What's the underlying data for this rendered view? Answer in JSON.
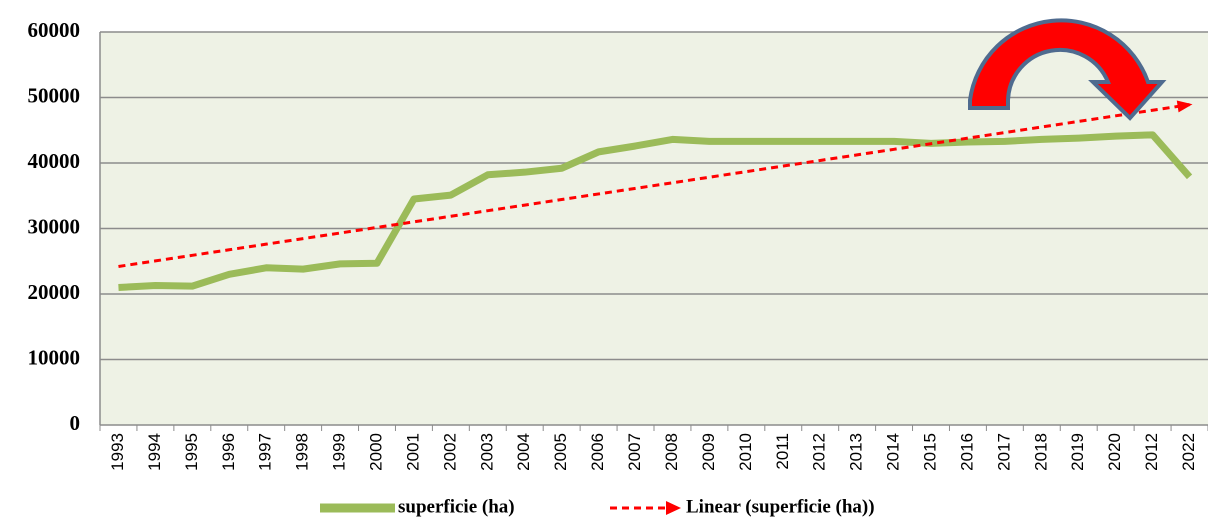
{
  "chart_data": {
    "type": "line",
    "categories": [
      "1993",
      "1994",
      "1995",
      "1996",
      "1997",
      "1998",
      "1999",
      "2000",
      "2001",
      "2002",
      "2003",
      "2004",
      "2005",
      "2006",
      "2007",
      "2008",
      "2009",
      "2010",
      "2011",
      "2012",
      "2013",
      "2014",
      "2015",
      "2016",
      "2017",
      "2018",
      "2019",
      "2020",
      "2012",
      "2022"
    ],
    "series": [
      {
        "name": "superficie (ha)",
        "color": "#9bbb59",
        "values": [
          21000,
          21300,
          21200,
          23000,
          24000,
          23800,
          24600,
          24700,
          34500,
          35100,
          38200,
          38600,
          39200,
          41700,
          42600,
          43600,
          43300,
          43300,
          43300,
          43300,
          43300,
          43300,
          43000,
          43200,
          43300,
          43600,
          43800,
          44100,
          44300,
          37900
        ]
      },
      {
        "name": "Linear (superficie (ha))",
        "color": "#ff0000",
        "values": [
          24200,
          25052,
          25904,
          26756,
          27608,
          28460,
          29312,
          30164,
          31016,
          31868,
          32720,
          33572,
          34424,
          35276,
          36128,
          36980,
          37832,
          38684,
          39536,
          40388,
          41240,
          42092,
          42944,
          43796,
          44648,
          45500,
          46352,
          47204,
          48056,
          48908
        ]
      }
    ],
    "ylim": [
      0,
      60000
    ],
    "yticks": [
      0,
      10000,
      20000,
      30000,
      40000,
      50000,
      60000
    ],
    "grid": true
  }
}
